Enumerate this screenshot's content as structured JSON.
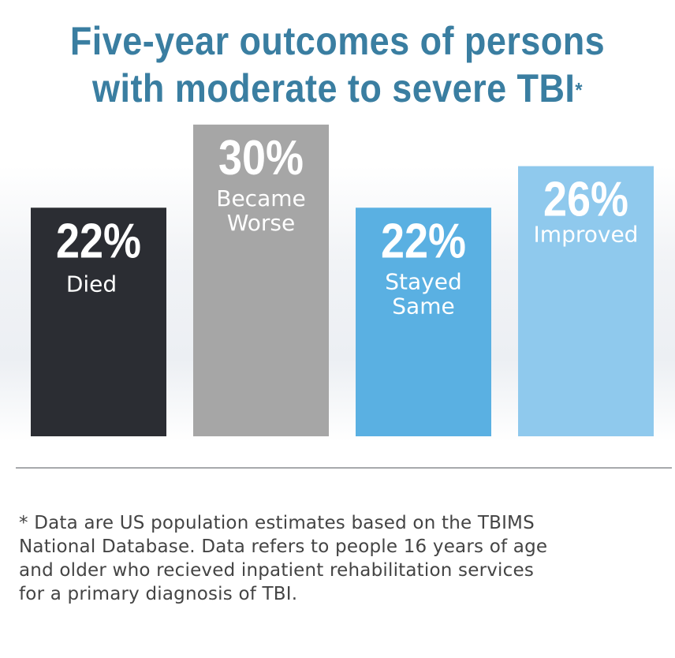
{
  "title": {
    "line1": "Five-year outcomes of persons",
    "line2": "with moderate to severe TBI",
    "marker": "*"
  },
  "chart_data": {
    "type": "bar",
    "title": "Five-year outcomes of persons with moderate to severe TBI*",
    "xlabel": "",
    "ylabel": "",
    "ylim": [
      0,
      100
    ],
    "categories": [
      "Died",
      "Became Worse",
      "Stayed Same",
      "Improved"
    ],
    "values": [
      22,
      30,
      22,
      26
    ],
    "value_labels": [
      "22%",
      "30%",
      "22%",
      "26%"
    ],
    "category_lines": [
      [
        "Died"
      ],
      [
        "Became",
        "Worse"
      ],
      [
        "Stayed",
        "Same"
      ],
      [
        "Improved"
      ]
    ],
    "colors": [
      "#2b2d33",
      "#a6a6a6",
      "#5ab0e2",
      "#8fc9ed"
    ],
    "grid": false,
    "legend": "none"
  },
  "footnote": {
    "lines": [
      "* Data are US population estimates based on the TBIMS",
      "National Database. Data refers to people 16 years of age",
      "and older who recieved inpatient rehabilitation services",
      "for a primary diagnosis of TBI."
    ]
  }
}
